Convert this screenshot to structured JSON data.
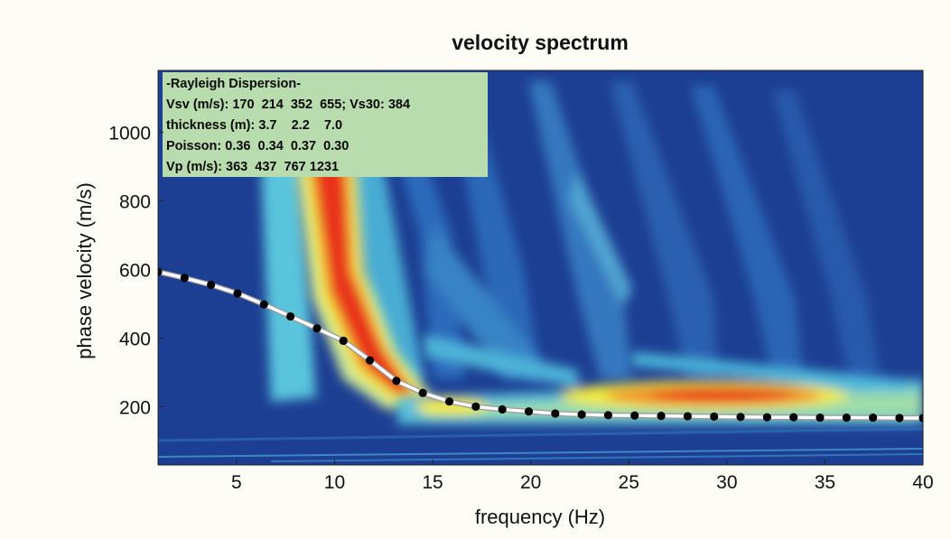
{
  "chart_data": {
    "type": "heatmap",
    "title": "velocity spectrum",
    "xlabel": "frequency (Hz)",
    "ylabel": "phase velocity (m/s)",
    "xlim": [
      1,
      40
    ],
    "ylim": [
      30,
      1180
    ],
    "x_ticks": [
      5,
      10,
      15,
      20,
      25,
      30,
      35,
      40
    ],
    "y_ticks": [
      200,
      400,
      600,
      800,
      1000
    ],
    "colormap": [
      "#1a3a8c",
      "#2a5fb0",
      "#5ccbe0",
      "#bfe39a",
      "#f2ea3c",
      "#f08a2a",
      "#e8331e"
    ],
    "info_box": {
      "lines": [
        "-Rayleigh Dispersion-",
        "Vsv (m/s): 170  214  352  655; Vs30: 384",
        "thickness (m): 3.7    2.2    7.0",
        "Poisson: 0.36  0.34  0.37  0.30",
        "Vp (m/s): 363  437  767 1231"
      ],
      "background": "#b8dcae"
    },
    "series": [
      {
        "type": "line",
        "color": "#ffffff",
        "markers": true,
        "marker_color": "#000000",
        "x": [
          1.0,
          2.35,
          3.7,
          5.05,
          6.4,
          7.75,
          9.1,
          10.45,
          11.8,
          13.15,
          14.5,
          15.85,
          17.2,
          18.55,
          19.9,
          21.25,
          22.6,
          23.95,
          25.3,
          26.65,
          28.0,
          29.35,
          30.7,
          32.05,
          33.4,
          34.75,
          36.1,
          37.45,
          38.8,
          40.0
        ],
        "y": [
          593,
          575,
          555,
          530,
          498,
          463,
          428,
          392,
          335,
          275,
          240,
          215,
          200,
          192,
          186,
          180,
          177,
          175,
          174,
          173,
          172,
          171,
          170,
          169,
          169,
          168,
          168,
          168,
          167,
          167
        ]
      }
    ]
  }
}
